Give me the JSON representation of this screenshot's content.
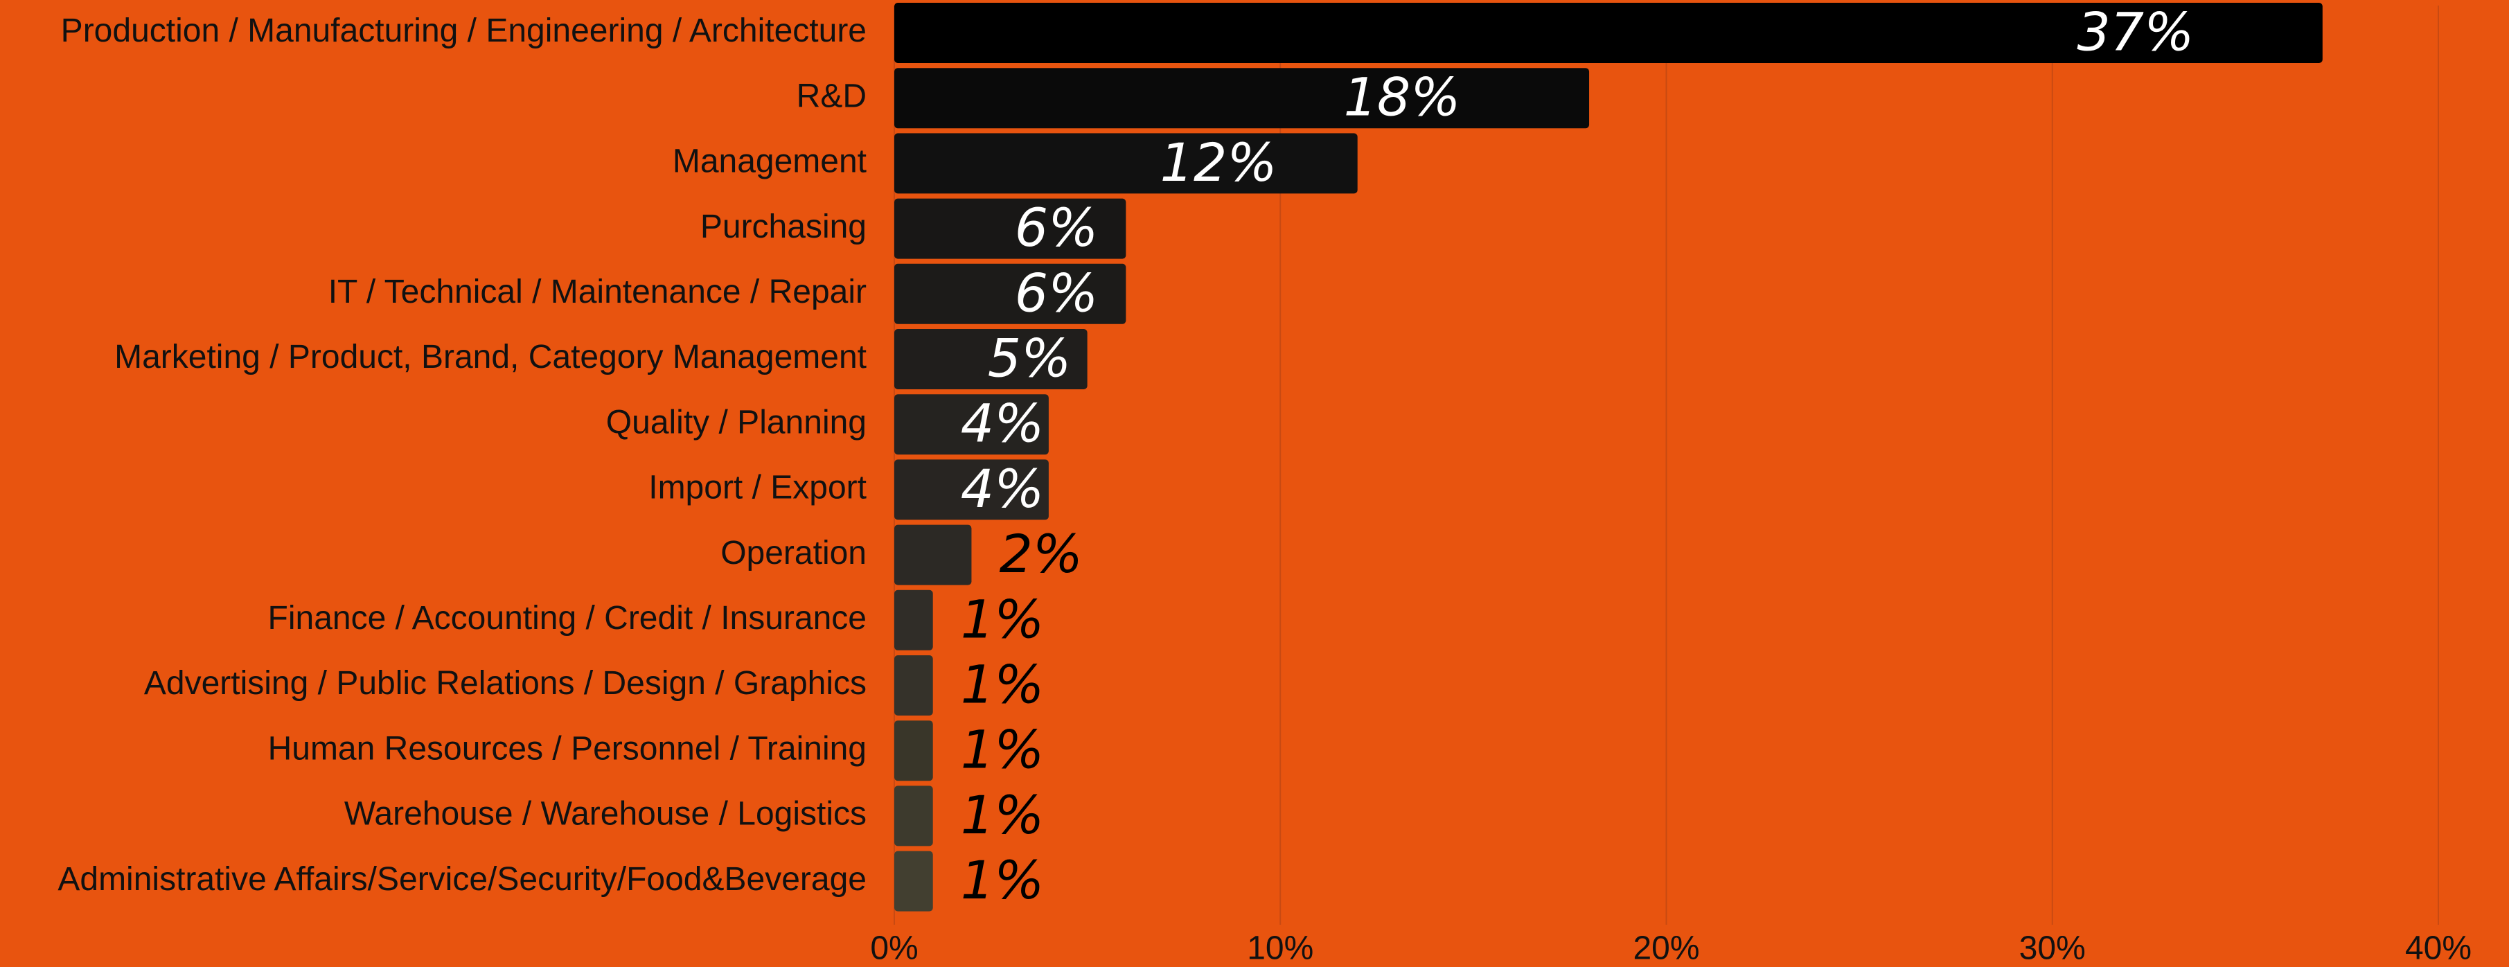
{
  "chart_data": {
    "type": "barh",
    "categories": [
      "Production / Manufacturing / Engineering / Architecture",
      "R&D",
      "Management",
      "Purchasing",
      "IT / Technical / Maintenance / Repair",
      "Marketing / Product, Brand, Category Management",
      "Quality / Planning",
      "Import / Export",
      "Operation",
      "Finance / Accounting / Credit / Insurance",
      "Advertising / Public Relations / Design / Graphics",
      "Human Resources / Personnel / Training",
      "Warehouse / Warehouse / Logistics",
      "Administrative Affairs/Service/Security/Food&Beverage"
    ],
    "values": [
      37,
      18,
      12,
      6,
      6,
      5,
      4,
      4,
      2,
      1,
      1,
      1,
      1,
      1
    ],
    "value_labels": [
      "37%",
      "18%",
      "12%",
      "6%",
      "6%",
      "5%",
      "4%",
      "4%",
      "2%",
      "1%",
      "1%",
      "1%",
      "1%",
      "1%"
    ],
    "colors": [
      "#000000",
      "#0a0a0a",
      "#111111",
      "#181716",
      "#1c1b19",
      "#201e1c",
      "#252320",
      "#282522",
      "#2c2925",
      "#302d28",
      "#35322a",
      "#393629",
      "#3d3a2d",
      "#423f30"
    ],
    "xlim": [
      0,
      40
    ],
    "xticks": [
      {
        "value": 0,
        "label": "0%"
      },
      {
        "value": 10,
        "label": "10%"
      },
      {
        "value": 20,
        "label": "20%"
      },
      {
        "value": 30,
        "label": "30%"
      },
      {
        "value": 40,
        "label": "40%"
      }
    ],
    "grid": true
  }
}
